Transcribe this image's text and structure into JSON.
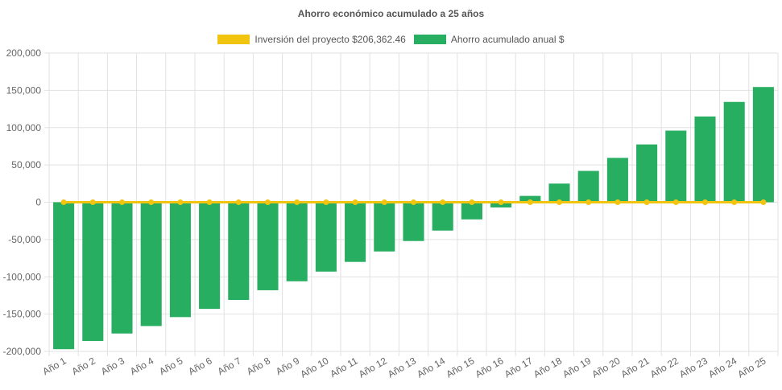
{
  "chart_data": {
    "type": "bar",
    "title": "Ahorro económico acumulado a 25 años",
    "categories": [
      "Año 1",
      "Año 2",
      "Año 3",
      "Año 4",
      "Año 5",
      "Año 6",
      "Año 7",
      "Año 8",
      "Año 9",
      "Año 10",
      "Año 11",
      "Año 12",
      "Año 13",
      "Año 14",
      "Año 15",
      "Año 16",
      "Año 17",
      "Año 18",
      "Año 19",
      "Año 20",
      "Año 21",
      "Año 22",
      "Año 23",
      "Año 24",
      "Año 25"
    ],
    "series": [
      {
        "name": "Inversión del proyecto $206,362.46",
        "type": "line",
        "color": "#f1c40f",
        "values": [
          0,
          0,
          0,
          0,
          0,
          0,
          0,
          0,
          0,
          0,
          0,
          0,
          0,
          0,
          0,
          0,
          0,
          0,
          0,
          0,
          0,
          0,
          0,
          0,
          0
        ]
      },
      {
        "name": "Ahorro acumulado anual $",
        "type": "bar",
        "color": "#27ae60",
        "values": [
          -197000,
          -186000,
          -176000,
          -166000,
          -154000,
          -143000,
          -131000,
          -118000,
          -106000,
          -93000,
          -80000,
          -66000,
          -52000,
          -38000,
          -23000,
          -7000,
          8500,
          25000,
          42000,
          59500,
          77500,
          96000,
          115000,
          134500,
          154500
        ]
      }
    ],
    "y_ticks": [
      "200,000",
      "150,000",
      "100,000",
      "50,000",
      "0",
      "-50,000",
      "-100,000",
      "-150,000",
      "-200,000"
    ],
    "ylim": [
      -200000,
      200000
    ],
    "grid": true,
    "legend_position": "top"
  }
}
